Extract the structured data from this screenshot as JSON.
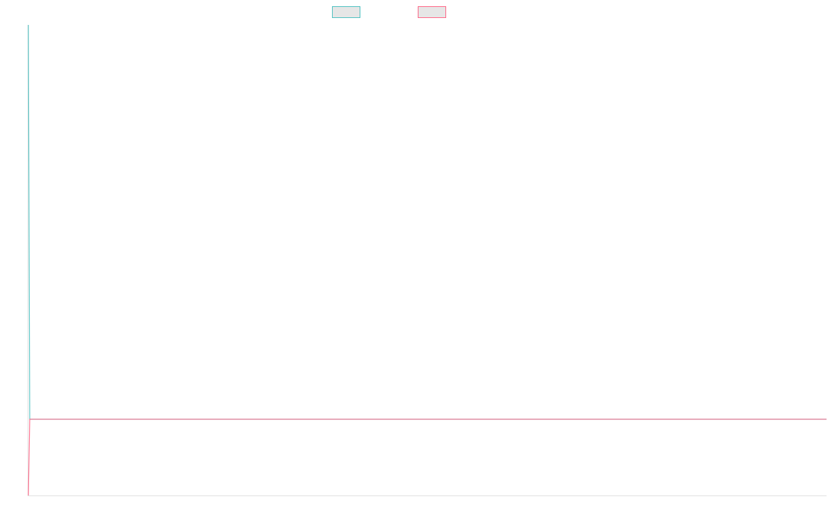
{
  "chart_data": {
    "type": "line",
    "title": "",
    "xlabel": "",
    "ylabel": "",
    "ylim": [
      0,
      100
    ],
    "grid": false,
    "legend": "top-center",
    "series": [
      {
        "color": "#4bc0c0",
        "values": [
          100,
          16.2,
          16.2,
          16.2,
          16.2,
          16.2,
          16.2,
          16.2,
          16.2,
          16.2,
          16.2,
          16.2,
          16.2,
          16.2,
          16.2,
          16.2,
          16.2,
          16.2,
          16.2,
          16.2,
          16.2,
          16.2,
          16.2,
          16.2,
          16.2,
          16.2,
          16.2,
          16.2,
          16.2,
          16.2,
          16.2,
          16.2,
          16.2,
          16.2,
          16.2,
          16.2,
          16.2,
          16.2,
          16.2,
          16.2,
          16.2,
          16.2,
          16.2,
          16.2,
          16.2,
          16.2,
          16.2,
          16.2,
          16.2,
          16.2,
          16.2,
          16.2,
          16.2,
          16.2,
          16.2,
          16.2,
          16.2,
          16.2,
          16.2,
          16.2,
          16.2,
          16.2,
          16.2,
          16.2,
          16.2,
          16.2,
          16.2,
          16.2,
          16.2,
          16.2,
          16.2,
          16.2,
          16.2,
          16.2,
          16.2,
          16.2,
          16.2,
          16.2,
          16.2,
          16.2,
          16.2,
          16.2,
          16.2,
          16.2,
          16.2,
          16.2,
          16.2,
          16.2,
          16.2,
          16.2,
          16.2,
          16.2,
          16.2,
          16.2,
          16.2,
          16.2,
          16.2
        ]
      },
      {
        "color": "#ff6384",
        "values": [
          0,
          16.2,
          16.2,
          16.2,
          16.2,
          16.2,
          16.2,
          16.2,
          16.2,
          16.2,
          16.2,
          16.2,
          16.2,
          16.2,
          16.2,
          16.2,
          16.2,
          16.2,
          16.2,
          16.2,
          16.2,
          16.2,
          16.2,
          16.2,
          16.2,
          16.2,
          16.2,
          16.2,
          16.2,
          16.2,
          16.2,
          16.2,
          16.2,
          16.2,
          16.2,
          16.2,
          16.2,
          16.2,
          16.2,
          16.2,
          16.2,
          16.2,
          16.2,
          16.2,
          16.2,
          16.2,
          16.2,
          16.2,
          16.2,
          16.2,
          16.2,
          16.2,
          16.2,
          16.2,
          16.2,
          16.2,
          16.2,
          16.2,
          16.2,
          16.2,
          16.2,
          16.2,
          16.2,
          16.2,
          16.2,
          16.2,
          16.2,
          16.2,
          16.2,
          16.2,
          16.2,
          16.2,
          16.2,
          16.2,
          16.2,
          16.2,
          16.2,
          16.2,
          16.2,
          16.2,
          16.2,
          16.2,
          16.2,
          16.2,
          16.2,
          16.2,
          16.2,
          16.2,
          16.2,
          16.2,
          16.2,
          16.2,
          16.2,
          16.2,
          16.2,
          16.2,
          16.2
        ]
      }
    ]
  }
}
